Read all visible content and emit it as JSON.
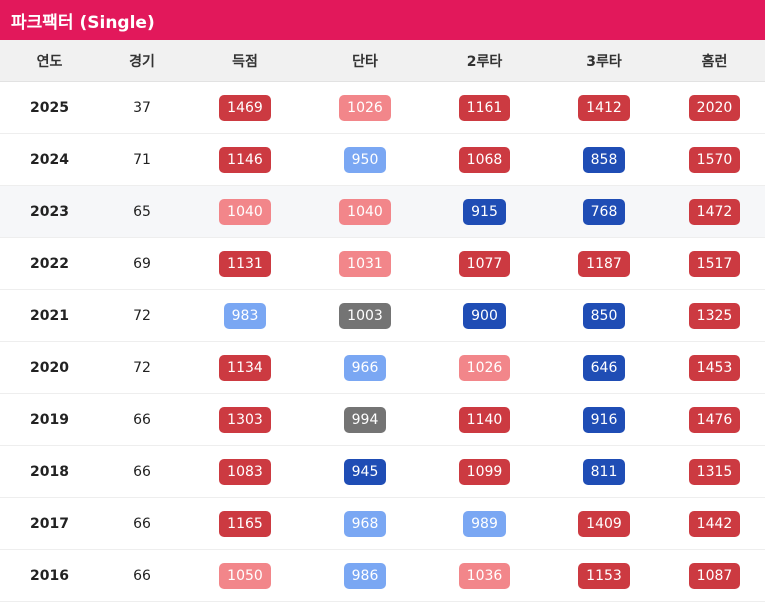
{
  "header": {
    "title": "파크팩터 (Single)"
  },
  "columns": [
    "연도",
    "경기",
    "득점",
    "단타",
    "2루타",
    "3루타",
    "홈런"
  ],
  "colors": {
    "dark_red": "#cc3a41",
    "light_red": "#f2868a",
    "light_blue": "#7aa7f3",
    "dark_blue": "#1f4db5",
    "gray": "#747474",
    "header_bar": "#e2185b"
  },
  "rows": [
    {
      "year": "2025",
      "games": "37",
      "cells": [
        {
          "v": "1469",
          "c": "dark_red"
        },
        {
          "v": "1026",
          "c": "light_red"
        },
        {
          "v": "1161",
          "c": "dark_red"
        },
        {
          "v": "1412",
          "c": "dark_red"
        },
        {
          "v": "2020",
          "c": "dark_red"
        }
      ]
    },
    {
      "year": "2024",
      "games": "71",
      "cells": [
        {
          "v": "1146",
          "c": "dark_red"
        },
        {
          "v": "950",
          "c": "light_blue"
        },
        {
          "v": "1068",
          "c": "dark_red"
        },
        {
          "v": "858",
          "c": "dark_blue"
        },
        {
          "v": "1570",
          "c": "dark_red"
        }
      ]
    },
    {
      "year": "2023",
      "games": "65",
      "cells": [
        {
          "v": "1040",
          "c": "light_red"
        },
        {
          "v": "1040",
          "c": "light_red"
        },
        {
          "v": "915",
          "c": "dark_blue"
        },
        {
          "v": "768",
          "c": "dark_blue"
        },
        {
          "v": "1472",
          "c": "dark_red"
        }
      ]
    },
    {
      "year": "2022",
      "games": "69",
      "cells": [
        {
          "v": "1131",
          "c": "dark_red"
        },
        {
          "v": "1031",
          "c": "light_red"
        },
        {
          "v": "1077",
          "c": "dark_red"
        },
        {
          "v": "1187",
          "c": "dark_red"
        },
        {
          "v": "1517",
          "c": "dark_red"
        }
      ]
    },
    {
      "year": "2021",
      "games": "72",
      "cells": [
        {
          "v": "983",
          "c": "light_blue"
        },
        {
          "v": "1003",
          "c": "gray"
        },
        {
          "v": "900",
          "c": "dark_blue"
        },
        {
          "v": "850",
          "c": "dark_blue"
        },
        {
          "v": "1325",
          "c": "dark_red"
        }
      ]
    },
    {
      "year": "2020",
      "games": "72",
      "cells": [
        {
          "v": "1134",
          "c": "dark_red"
        },
        {
          "v": "966",
          "c": "light_blue"
        },
        {
          "v": "1026",
          "c": "light_red"
        },
        {
          "v": "646",
          "c": "dark_blue"
        },
        {
          "v": "1453",
          "c": "dark_red"
        }
      ]
    },
    {
      "year": "2019",
      "games": "66",
      "cells": [
        {
          "v": "1303",
          "c": "dark_red"
        },
        {
          "v": "994",
          "c": "gray"
        },
        {
          "v": "1140",
          "c": "dark_red"
        },
        {
          "v": "916",
          "c": "dark_blue"
        },
        {
          "v": "1476",
          "c": "dark_red"
        }
      ]
    },
    {
      "year": "2018",
      "games": "66",
      "cells": [
        {
          "v": "1083",
          "c": "dark_red"
        },
        {
          "v": "945",
          "c": "dark_blue"
        },
        {
          "v": "1099",
          "c": "dark_red"
        },
        {
          "v": "811",
          "c": "dark_blue"
        },
        {
          "v": "1315",
          "c": "dark_red"
        }
      ]
    },
    {
      "year": "2017",
      "games": "66",
      "cells": [
        {
          "v": "1165",
          "c": "dark_red"
        },
        {
          "v": "968",
          "c": "light_blue"
        },
        {
          "v": "989",
          "c": "light_blue"
        },
        {
          "v": "1409",
          "c": "dark_red"
        },
        {
          "v": "1442",
          "c": "dark_red"
        }
      ]
    },
    {
      "year": "2016",
      "games": "66",
      "cells": [
        {
          "v": "1050",
          "c": "light_red"
        },
        {
          "v": "986",
          "c": "light_blue"
        },
        {
          "v": "1036",
          "c": "light_red"
        },
        {
          "v": "1153",
          "c": "dark_red"
        },
        {
          "v": "1087",
          "c": "dark_red"
        }
      ]
    }
  ]
}
